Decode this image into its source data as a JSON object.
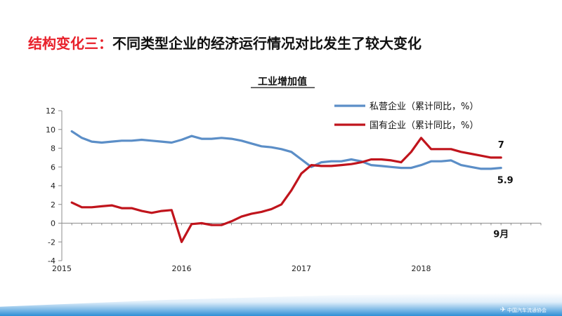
{
  "slide": {
    "title_lead": "结构变化三：",
    "title_rest": "不同类型企业的经济运行情况对比发生了较大变化",
    "footer_logo_text": "中国汽车流通协会",
    "footer_logo_icon": "airplane-logo-icon"
  },
  "colors": {
    "title_accent": "#e8202a",
    "series_private": "#5b8ec7",
    "series_state": "#c0141c",
    "footer_band": "#2f8fd6"
  },
  "chart_data": {
    "type": "line",
    "title": "工业增加值",
    "xlabel": "",
    "ylabel": "",
    "ylim": [
      -4,
      12
    ],
    "yticks": [
      -4,
      -2,
      0,
      2,
      4,
      6,
      8,
      10,
      12
    ],
    "yticklabels": [
      "-4",
      "-2",
      "0",
      "2",
      "4",
      "6",
      "8",
      "10",
      "12"
    ],
    "xlim": [
      2015.0,
      2019.0
    ],
    "xticks": [
      2015,
      2016,
      2017,
      2018
    ],
    "xticklabels": [
      "2015",
      "2016",
      "2017",
      "2018"
    ],
    "grid": false,
    "legend_position": "top-right",
    "series": [
      {
        "name": "私营企业（累计同比，%）",
        "color": "#5b8ec7",
        "x": [
          2015.083,
          2015.167,
          2015.25,
          2015.333,
          2015.417,
          2015.5,
          2015.583,
          2015.667,
          2015.75,
          2015.833,
          2015.917,
          2016.0,
          2016.083,
          2016.167,
          2016.25,
          2016.333,
          2016.417,
          2016.5,
          2016.583,
          2016.667,
          2016.75,
          2016.833,
          2016.917,
          2017.0,
          2017.083,
          2017.167,
          2017.25,
          2017.333,
          2017.417,
          2017.5,
          2017.583,
          2017.667,
          2017.75,
          2017.833,
          2017.917,
          2018.0,
          2018.083,
          2018.167,
          2018.25,
          2018.333,
          2018.417,
          2018.5,
          2018.583,
          2018.667
        ],
        "values": [
          9.8,
          9.1,
          8.7,
          8.6,
          8.7,
          8.8,
          8.8,
          8.9,
          8.8,
          8.7,
          8.6,
          8.9,
          9.3,
          9.0,
          9.0,
          9.1,
          9.0,
          8.8,
          8.5,
          8.2,
          8.1,
          7.9,
          7.6,
          6.8,
          6.0,
          6.5,
          6.6,
          6.6,
          6.8,
          6.6,
          6.2,
          6.1,
          6.0,
          5.9,
          5.9,
          6.2,
          6.6,
          6.6,
          6.7,
          6.2,
          6.0,
          5.8,
          5.8,
          5.9
        ],
        "end_label": "5.9"
      },
      {
        "name": "国有企业（累计同比，%）",
        "color": "#c0141c",
        "x": [
          2015.083,
          2015.167,
          2015.25,
          2015.333,
          2015.417,
          2015.5,
          2015.583,
          2015.667,
          2015.75,
          2015.833,
          2015.917,
          2016.0,
          2016.083,
          2016.167,
          2016.25,
          2016.333,
          2016.417,
          2016.5,
          2016.583,
          2016.667,
          2016.75,
          2016.833,
          2016.917,
          2017.0,
          2017.083,
          2017.167,
          2017.25,
          2017.333,
          2017.417,
          2017.5,
          2017.583,
          2017.667,
          2017.75,
          2017.833,
          2017.917,
          2018.0,
          2018.083,
          2018.167,
          2018.25,
          2018.333,
          2018.417,
          2018.5,
          2018.583,
          2018.667
        ],
        "values": [
          2.2,
          1.7,
          1.7,
          1.8,
          1.9,
          1.6,
          1.6,
          1.3,
          1.1,
          1.3,
          1.4,
          -2.0,
          -0.1,
          0.0,
          -0.2,
          -0.2,
          0.2,
          0.7,
          1.0,
          1.2,
          1.5,
          2.0,
          3.5,
          5.3,
          6.2,
          6.1,
          6.1,
          6.2,
          6.3,
          6.5,
          6.8,
          6.8,
          6.7,
          6.5,
          7.6,
          9.1,
          7.9,
          7.9,
          7.9,
          7.6,
          7.4,
          7.2,
          7.0,
          7.0
        ],
        "end_label": "7"
      }
    ],
    "annotations": [
      {
        "text": "9月",
        "x": 2018.667,
        "y": -0.9
      }
    ]
  }
}
